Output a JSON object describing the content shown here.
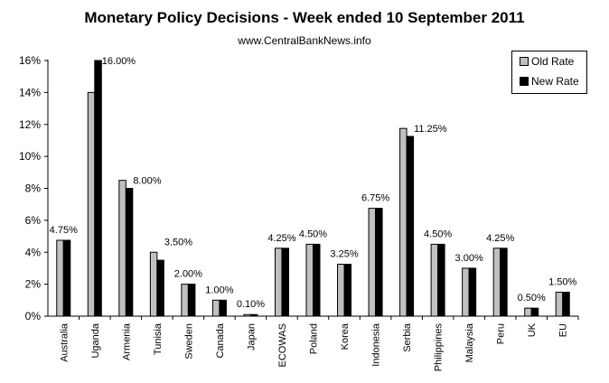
{
  "chart_data": {
    "type": "bar",
    "title": "Monetary Policy Decisions - Week ended 10 September 2011",
    "subtitle": "www.CentralBankNews.info",
    "xlabel": "",
    "ylabel": "",
    "ylim": [
      0,
      16
    ],
    "yticks": [
      "0%",
      "2%",
      "4%",
      "6%",
      "8%",
      "10%",
      "12%",
      "14%",
      "16%"
    ],
    "legend_position": "top-right",
    "categories": [
      "Australia",
      "Uganda",
      "Armenia",
      "Tunisia",
      "Sweden",
      "Canada",
      "Japan",
      "ECOWAS",
      "Poland",
      "Korea",
      "Indonesia",
      "Serbia",
      "Philippines",
      "Malaysia",
      "Peru",
      "UK",
      "EU"
    ],
    "series": [
      {
        "name": "Old Rate",
        "color": "#c0c0c0",
        "values": [
          4.75,
          14,
          8.5,
          4,
          2,
          1,
          0.1,
          4.25,
          4.5,
          3.25,
          6.75,
          11.75,
          4.5,
          3,
          4.25,
          0.5,
          1.5
        ]
      },
      {
        "name": "New Rate",
        "color": "#000000",
        "values": [
          4.75,
          16,
          8,
          3.5,
          2,
          1,
          0.1,
          4.25,
          4.5,
          3.25,
          6.75,
          11.25,
          4.5,
          3,
          4.25,
          0.5,
          1.5
        ]
      }
    ],
    "data_labels": [
      "4.75%",
      "16.00%",
      "8.00%",
      "3.50%",
      "2.00%",
      "1.00%",
      "0.10%",
      "4.25%",
      "4.50%",
      "3.25%",
      "6.75%",
      "11.25%",
      "4.50%",
      "3.00%",
      "4.25%",
      "0.50%",
      "1.50%"
    ]
  }
}
